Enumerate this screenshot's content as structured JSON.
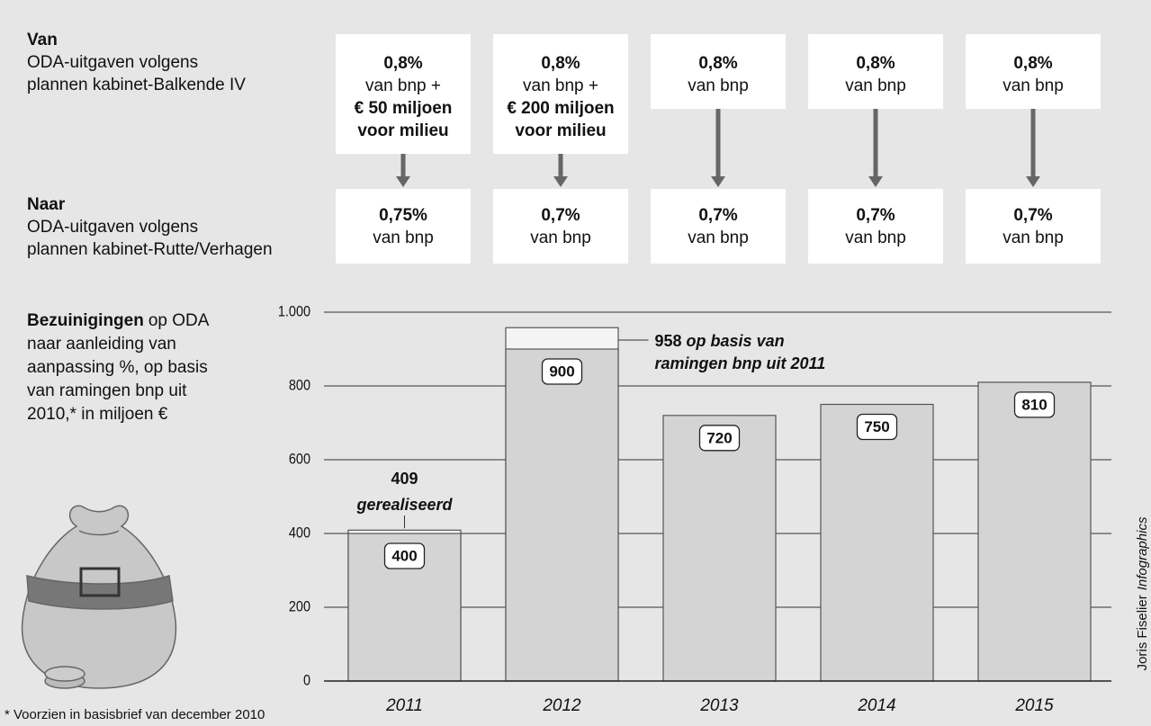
{
  "van": {
    "title": "Van",
    "lines": [
      "ODA-uitgaven volgens",
      "plannen kabinet-Balkende IV"
    ]
  },
  "naar": {
    "title": "Naar",
    "lines": [
      "ODA-uitgaven volgens",
      "plannen kabinet-Rutte/Verhagen"
    ]
  },
  "van_boxes": [
    {
      "pct": "0,8%",
      "lines": [
        "van bnp +"
      ],
      "bold_lines": [
        "€ 50 miljoen",
        "voor milieu"
      ]
    },
    {
      "pct": "0,8%",
      "lines": [
        "van bnp +"
      ],
      "bold_lines": [
        "€ 200 miljoen",
        "voor milieu"
      ]
    },
    {
      "pct": "0,8%",
      "lines": [
        "van bnp"
      ]
    },
    {
      "pct": "0,8%",
      "lines": [
        "van bnp"
      ]
    },
    {
      "pct": "0,8%",
      "lines": [
        "van bnp"
      ]
    }
  ],
  "naar_boxes": [
    {
      "pct": "0,75%",
      "lines": [
        "van bnp"
      ]
    },
    {
      "pct": "0,7%",
      "lines": [
        "van bnp"
      ]
    },
    {
      "pct": "0,7%",
      "lines": [
        "van bnp"
      ]
    },
    {
      "pct": "0,7%",
      "lines": [
        "van bnp"
      ]
    },
    {
      "pct": "0,7%",
      "lines": [
        "van bnp"
      ]
    }
  ],
  "chart_data": {
    "type": "bar",
    "description": {
      "bold": "Bezuinigingen",
      "rest": "op ODA",
      "lines": [
        "naar aanleiding van",
        "aanpassing %, op basis",
        "van ramingen bnp uit",
        "2010,* in miljoen €"
      ]
    },
    "categories": [
      "2011",
      "2012",
      "2013",
      "2014",
      "2015"
    ],
    "series": [
      {
        "values": [
          400,
          900,
          720,
          750,
          810
        ],
        "color": "#d4d4d4"
      },
      {
        "values": [
          409,
          958,
          null,
          null,
          null
        ],
        "color": "#f4f4f4"
      }
    ],
    "annotations": [
      [
        "gerealiseerd"
      ],
      [
        "op basis van",
        "ramingen bnp uit 2011"
      ]
    ],
    "ylim": [
      0,
      1000
    ],
    "yticks": [
      0,
      200,
      400,
      600,
      800,
      {
        "value": 1000,
        "label": "1.000"
      }
    ],
    "grid": true,
    "footnote": "* Voorzien in basisbrief van december 2010"
  },
  "credit": {
    "name": "Joris Fiselier",
    "agency": "Infographics"
  }
}
